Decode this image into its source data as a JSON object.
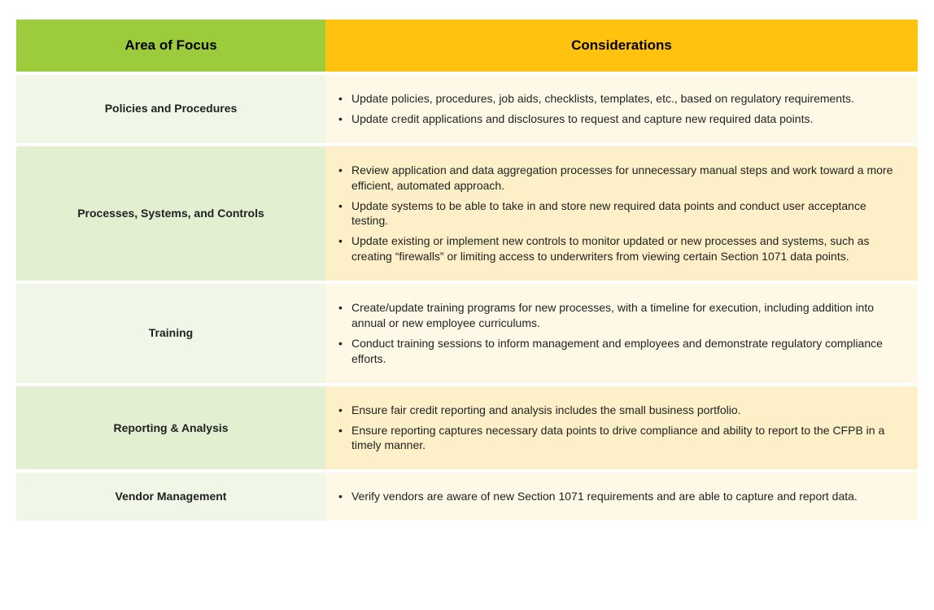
{
  "columns": {
    "focus": "Area of Focus",
    "considerations": "Considerations"
  },
  "header_colors": {
    "focus_bg": "#9ccb3b",
    "considerations_bg": "#ffc20e"
  },
  "row_colors": {
    "odd_focus_bg": "#f0f7e6",
    "odd_cons_bg": "#fef9e7",
    "even_focus_bg": "#e2efd1",
    "even_cons_bg": "#fdf0c8"
  },
  "rows": [
    {
      "focus": "Policies and Procedures",
      "considerations": [
        "Update policies, procedures, job aids, checklists, templates, etc., based on regulatory requirements.",
        "Update credit applications and disclosures to request and capture new required data points."
      ]
    },
    {
      "focus": "Processes, Systems, and Controls",
      "considerations": [
        "Review application and data aggregation processes for unnecessary manual steps and work toward a more efficient, automated approach.",
        "Update systems to be able to take in and store new required data points and conduct user acceptance testing.",
        "Update existing or implement new controls to monitor updated or new processes and systems, such as creating “firewalls” or limiting access to underwriters from viewing certain Section 1071 data points."
      ]
    },
    {
      "focus": "Training",
      "considerations": [
        "Create/update training programs for new processes, with a timeline for execution, including addition into annual or new employee curriculums.",
        "Conduct training sessions to inform management and employees and demonstrate regulatory compliance efforts."
      ]
    },
    {
      "focus": "Reporting & Analysis",
      "considerations": [
        "Ensure fair credit reporting and analysis includes the small business portfolio.",
        "Ensure reporting captures necessary data points to drive compliance and ability to report to the CFPB in a timely manner."
      ]
    },
    {
      "focus": "Vendor Management",
      "considerations": [
        "Verify vendors are aware of new Section 1071 requirements and are able to capture and report data."
      ]
    }
  ]
}
